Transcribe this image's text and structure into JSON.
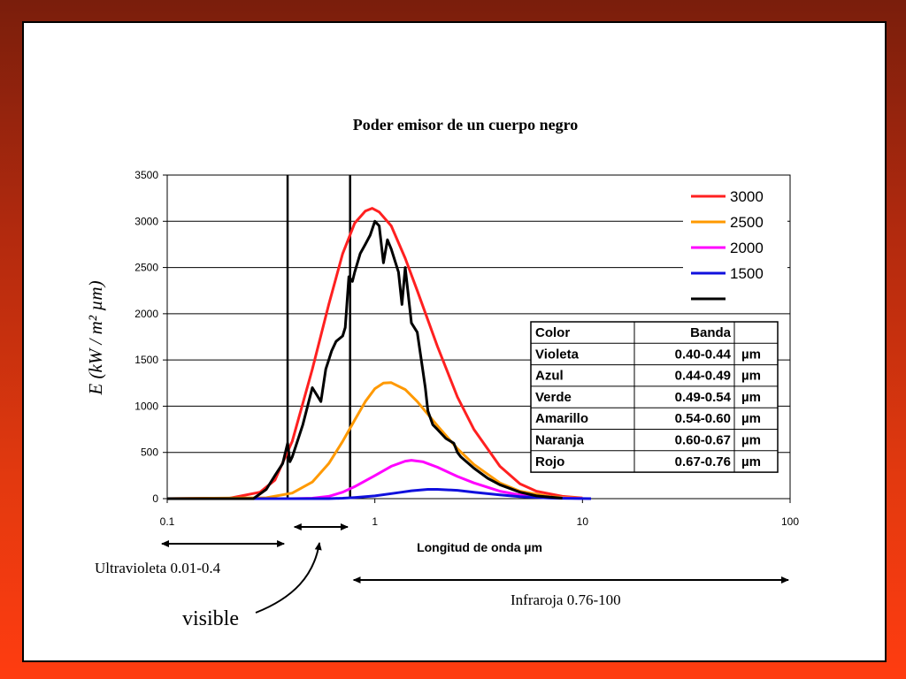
{
  "chart_data": {
    "type": "line",
    "title": "Poder emisor de un cuerpo negro",
    "xlabel": "Longitud de onda µm",
    "ylabel": "E (kW / m² µm)",
    "x_scale": "log",
    "xlim": [
      0.1,
      100
    ],
    "ylim": [
      0,
      3500
    ],
    "xticks": [
      0.1,
      1,
      10,
      100
    ],
    "xtick_labels": [
      "0.1",
      "1",
      "10",
      "100"
    ],
    "yticks": [
      0,
      500,
      1000,
      1500,
      2000,
      2500,
      3000,
      3500
    ],
    "ytick_labels": [
      "0",
      "500",
      "1000",
      "1500",
      "2000",
      "2500",
      "3000",
      "3500"
    ],
    "grid": "horizontal",
    "legend_position": "top-right",
    "series": [
      {
        "name": "3000",
        "color": "#ff2020",
        "x": [
          0.1,
          0.2,
          0.28,
          0.33,
          0.4,
          0.5,
          0.6,
          0.7,
          0.8,
          0.9,
          0.97,
          1.05,
          1.2,
          1.4,
          1.6,
          2.0,
          2.5,
          3.0,
          4.0,
          5.0,
          6.0,
          8.0,
          10.0
        ],
        "y": [
          0,
          5,
          70,
          200,
          620,
          1400,
          2100,
          2650,
          2980,
          3110,
          3140,
          3100,
          2950,
          2600,
          2250,
          1650,
          1100,
          750,
          350,
          160,
          80,
          25,
          8
        ]
      },
      {
        "name": "2500",
        "color": "#ff9900",
        "x": [
          0.1,
          0.3,
          0.4,
          0.5,
          0.6,
          0.7,
          0.8,
          0.9,
          1.0,
          1.1,
          1.2,
          1.4,
          1.6,
          2.0,
          2.5,
          3.0,
          4.0,
          5.0,
          7.0,
          10.0
        ],
        "y": [
          0,
          10,
          60,
          180,
          380,
          620,
          850,
          1050,
          1190,
          1250,
          1255,
          1180,
          1050,
          790,
          540,
          370,
          170,
          80,
          20,
          5
        ]
      },
      {
        "name": "2000",
        "color": "#ff00ff",
        "x": [
          0.1,
          0.4,
          0.5,
          0.6,
          0.7,
          0.8,
          1.0,
          1.2,
          1.4,
          1.5,
          1.7,
          2.0,
          2.5,
          3.0,
          4.0,
          5.0,
          7.0,
          10.0
        ],
        "y": [
          0,
          0,
          5,
          25,
          70,
          130,
          250,
          350,
          405,
          415,
          400,
          340,
          240,
          170,
          80,
          40,
          10,
          2
        ]
      },
      {
        "name": "1500",
        "color": "#1010dd",
        "x": [
          0.1,
          0.6,
          0.7,
          0.8,
          1.0,
          1.3,
          1.5,
          1.8,
          2.0,
          2.5,
          3.0,
          4.0,
          5.0,
          7.0,
          11.0
        ],
        "y": [
          0,
          0,
          5,
          12,
          30,
          65,
          85,
          100,
          100,
          90,
          70,
          40,
          22,
          6,
          0
        ]
      },
      {
        "name": "",
        "color": "#000000",
        "x": [
          0.1,
          0.26,
          0.3,
          0.33,
          0.36,
          0.38,
          0.39,
          0.4,
          0.45,
          0.5,
          0.55,
          0.58,
          0.6,
          0.62,
          0.65,
          0.7,
          0.72,
          0.75,
          0.78,
          0.8,
          0.85,
          0.9,
          0.95,
          1.0,
          1.05,
          1.1,
          1.15,
          1.2,
          1.3,
          1.35,
          1.4,
          1.5,
          1.6,
          1.7,
          1.75,
          1.8,
          1.9,
          2.0,
          2.2,
          2.4,
          2.5,
          2.6,
          3.0,
          3.5,
          4.0,
          5.0,
          6.0,
          8.0
        ],
        "y": [
          0,
          0,
          100,
          250,
          380,
          600,
          400,
          450,
          800,
          1200,
          1050,
          1400,
          1500,
          1600,
          1700,
          1760,
          1850,
          2400,
          2350,
          2450,
          2650,
          2750,
          2850,
          3000,
          2950,
          2550,
          2800,
          2700,
          2450,
          2100,
          2500,
          1900,
          1800,
          1400,
          1200,
          950,
          800,
          750,
          650,
          600,
          500,
          450,
          330,
          220,
          150,
          70,
          30,
          5
        ]
      }
    ],
    "vertical_lines": [
      0.38,
      0.76
    ]
  },
  "band_table": {
    "headers": [
      "Color",
      "Banda",
      ""
    ],
    "rows": [
      [
        "Violeta",
        "0.40-0.44",
        "µm"
      ],
      [
        "Azul",
        "0.44-0.49",
        "µm"
      ],
      [
        "Verde",
        "0.49-0.54",
        "µm"
      ],
      [
        "Amarillo",
        "0.54-0.60",
        "µm"
      ],
      [
        "Naranja",
        "0.60-0.67",
        "µm"
      ],
      [
        "Rojo",
        "0.67-0.76",
        "µm"
      ]
    ]
  },
  "annotations": {
    "ultraviolet": "Ultravioleta 0.01-0.4",
    "infrared": "Infraroja 0.76-100",
    "visible": "visible"
  }
}
